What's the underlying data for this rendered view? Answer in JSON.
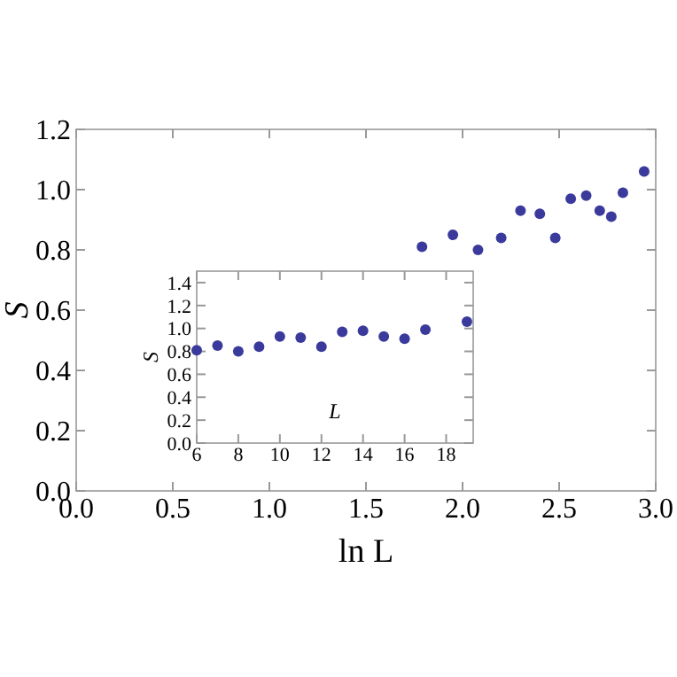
{
  "chart_data": [
    {
      "type": "scatter",
      "xlabel": "ln L",
      "ylabel": "S",
      "xlim": [
        0,
        3
      ],
      "ylim": [
        0,
        1.2
      ],
      "xticks": [
        {
          "value": 0,
          "label": "0.0"
        },
        {
          "value": 0.5,
          "label": "0.5"
        },
        {
          "value": 1,
          "label": "1.0"
        },
        {
          "value": 1.5,
          "label": "1.5"
        },
        {
          "value": 2,
          "label": "2.0"
        },
        {
          "value": 2.5,
          "label": "2.5"
        },
        {
          "value": 3,
          "label": "3.0"
        }
      ],
      "yticks": [
        {
          "value": 0,
          "label": "0.0"
        },
        {
          "value": 0.2,
          "label": "0.2"
        },
        {
          "value": 0.4,
          "label": "0.4"
        },
        {
          "value": 0.6,
          "label": "0.6"
        },
        {
          "value": 0.8,
          "label": "0.8"
        },
        {
          "value": 1,
          "label": "1.0"
        },
        {
          "value": 1.2,
          "label": "1.2"
        }
      ],
      "marker": "circle",
      "series": [
        {
          "color": "#3a3a9c",
          "x": [
            1.79,
            1.95,
            2.08,
            2.2,
            2.3,
            2.4,
            2.48,
            2.56,
            2.64,
            2.71,
            2.77,
            2.83,
            2.94
          ],
          "values": [
            0.81,
            0.85,
            0.8,
            0.84,
            0.93,
            0.92,
            0.84,
            0.97,
            0.98,
            0.93,
            0.91,
            0.99,
            1.06
          ]
        }
      ]
    },
    {
      "type": "scatter",
      "xlabel": "L",
      "ylabel": "S",
      "xlim": [
        6,
        19.3
      ],
      "ylim": [
        0,
        1.5
      ],
      "xticks": [
        6,
        8,
        10,
        12,
        14,
        16,
        18
      ],
      "yticks": [
        {
          "value": 0,
          "label": "0.0"
        },
        {
          "value": 0.2,
          "label": "0.2"
        },
        {
          "value": 0.4,
          "label": "0.4"
        },
        {
          "value": 0.6,
          "label": "0.6"
        },
        {
          "value": 0.8,
          "label": "0.8"
        },
        {
          "value": 1,
          "label": "1.0"
        },
        {
          "value": 1.2,
          "label": "1.2"
        },
        {
          "value": 1.4,
          "label": "1.4"
        }
      ],
      "marker": "circle",
      "series": [
        {
          "color": "#3a3a9c",
          "x": [
            6,
            7,
            8,
            9,
            10,
            11,
            12,
            13,
            14,
            15,
            16,
            17,
            19
          ],
          "values": [
            0.81,
            0.85,
            0.8,
            0.84,
            0.93,
            0.92,
            0.84,
            0.97,
            0.98,
            0.93,
            0.91,
            0.99,
            1.06
          ]
        }
      ]
    }
  ]
}
